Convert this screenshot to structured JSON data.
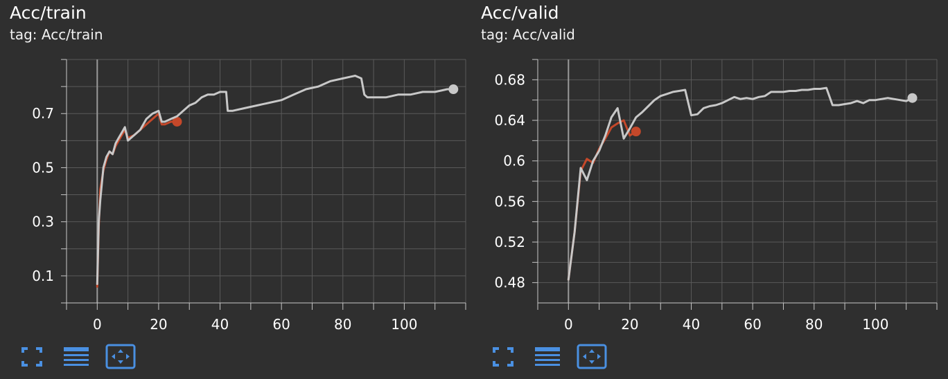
{
  "colors": {
    "background": "#2f2f2f",
    "grid": "#5a5a5a",
    "axis": "#c8c8c8",
    "text": "#ffffff",
    "series_gray": "#c8c8c8",
    "series_orange": "#c5482a",
    "toolbar": "#4a90e2"
  },
  "icons": [
    "fullscreen-icon",
    "lines-icon",
    "fit-domain-icon"
  ],
  "chart_data": [
    {
      "type": "line",
      "title": "Acc/train",
      "subtitle": "tag: Acc/train",
      "xlim": [
        -10,
        120
      ],
      "ylim": [
        0.0,
        0.9
      ],
      "xticks": [
        0,
        20,
        40,
        60,
        80,
        100
      ],
      "xtick_labels": [
        "0",
        "20",
        "40",
        "60",
        "80",
        "100"
      ],
      "yticks": [
        0.1,
        0.3,
        0.5,
        0.7
      ],
      "ytick_labels": [
        "0.1",
        "0.3",
        "0.5",
        "0.7"
      ],
      "grid": true,
      "series": [
        {
          "color": "orange",
          "x": [
            0,
            0.5,
            1,
            2,
            3,
            4,
            5,
            6,
            7,
            8,
            9,
            10,
            12,
            14,
            16,
            18,
            20,
            21,
            22,
            24,
            26
          ],
          "y": [
            0.06,
            0.28,
            0.42,
            0.49,
            0.53,
            0.56,
            0.55,
            0.58,
            0.6,
            0.62,
            0.64,
            0.61,
            0.62,
            0.64,
            0.66,
            0.68,
            0.7,
            0.66,
            0.66,
            0.67,
            0.67
          ]
        },
        {
          "color": "gray",
          "x": [
            0,
            0.5,
            1,
            2,
            3,
            4,
            5,
            6,
            7,
            8,
            9,
            10,
            12,
            14,
            16,
            18,
            20,
            21,
            22,
            24,
            26,
            28,
            30,
            32,
            34,
            36,
            38,
            40,
            42,
            42.5,
            44,
            48,
            52,
            56,
            60,
            64,
            68,
            72,
            76,
            80,
            84,
            86,
            87,
            88,
            90,
            94,
            98,
            102,
            106,
            110,
            114,
            116
          ],
          "y": [
            0.07,
            0.3,
            0.38,
            0.5,
            0.54,
            0.56,
            0.55,
            0.59,
            0.61,
            0.63,
            0.65,
            0.6,
            0.62,
            0.64,
            0.68,
            0.7,
            0.71,
            0.67,
            0.67,
            0.68,
            0.69,
            0.71,
            0.73,
            0.74,
            0.76,
            0.77,
            0.77,
            0.78,
            0.78,
            0.71,
            0.71,
            0.72,
            0.73,
            0.74,
            0.75,
            0.77,
            0.79,
            0.8,
            0.82,
            0.83,
            0.84,
            0.83,
            0.77,
            0.76,
            0.76,
            0.76,
            0.77,
            0.77,
            0.78,
            0.78,
            0.79,
            0.79
          ]
        }
      ]
    },
    {
      "type": "line",
      "title": "Acc/valid",
      "subtitle": "tag: Acc/valid",
      "xlim": [
        -10,
        120
      ],
      "ylim": [
        0.46,
        0.7
      ],
      "xticks": [
        0,
        20,
        40,
        60,
        80,
        100
      ],
      "xtick_labels": [
        "0",
        "20",
        "40",
        "60",
        "80",
        "100"
      ],
      "yticks": [
        0.48,
        0.52,
        0.56,
        0.6,
        0.64,
        0.68
      ],
      "ytick_labels": [
        "0.48",
        "0.52",
        "0.56",
        "0.6",
        "0.64",
        "0.68"
      ],
      "grid": true,
      "series": [
        {
          "color": "orange",
          "x": [
            0,
            2,
            4,
            6,
            8,
            10,
            12,
            14,
            16,
            18,
            20,
            22
          ],
          "y": [
            0.483,
            0.53,
            0.59,
            0.602,
            0.598,
            0.612,
            0.622,
            0.633,
            0.637,
            0.64,
            0.625,
            0.629
          ]
        },
        {
          "color": "gray",
          "x": [
            0,
            2,
            4,
            6,
            8,
            10,
            12,
            14,
            16,
            18,
            20,
            22,
            24,
            26,
            28,
            30,
            32,
            34,
            36,
            38,
            40,
            42,
            44,
            46,
            48,
            50,
            52,
            54,
            56,
            58,
            60,
            62,
            64,
            66,
            68,
            70,
            72,
            74,
            76,
            78,
            80,
            82,
            84,
            86,
            88,
            90,
            92,
            94,
            96,
            98,
            100,
            102,
            104,
            106,
            108,
            110,
            112
          ],
          "y": [
            0.483,
            0.53,
            0.593,
            0.581,
            0.6,
            0.61,
            0.625,
            0.643,
            0.652,
            0.622,
            0.632,
            0.643,
            0.648,
            0.654,
            0.66,
            0.664,
            0.666,
            0.668,
            0.669,
            0.67,
            0.645,
            0.646,
            0.652,
            0.654,
            0.655,
            0.657,
            0.66,
            0.663,
            0.661,
            0.662,
            0.661,
            0.663,
            0.664,
            0.668,
            0.668,
            0.668,
            0.669,
            0.669,
            0.67,
            0.67,
            0.671,
            0.671,
            0.672,
            0.655,
            0.655,
            0.656,
            0.657,
            0.659,
            0.657,
            0.66,
            0.66,
            0.661,
            0.662,
            0.661,
            0.66,
            0.659,
            0.662
          ]
        }
      ]
    }
  ]
}
